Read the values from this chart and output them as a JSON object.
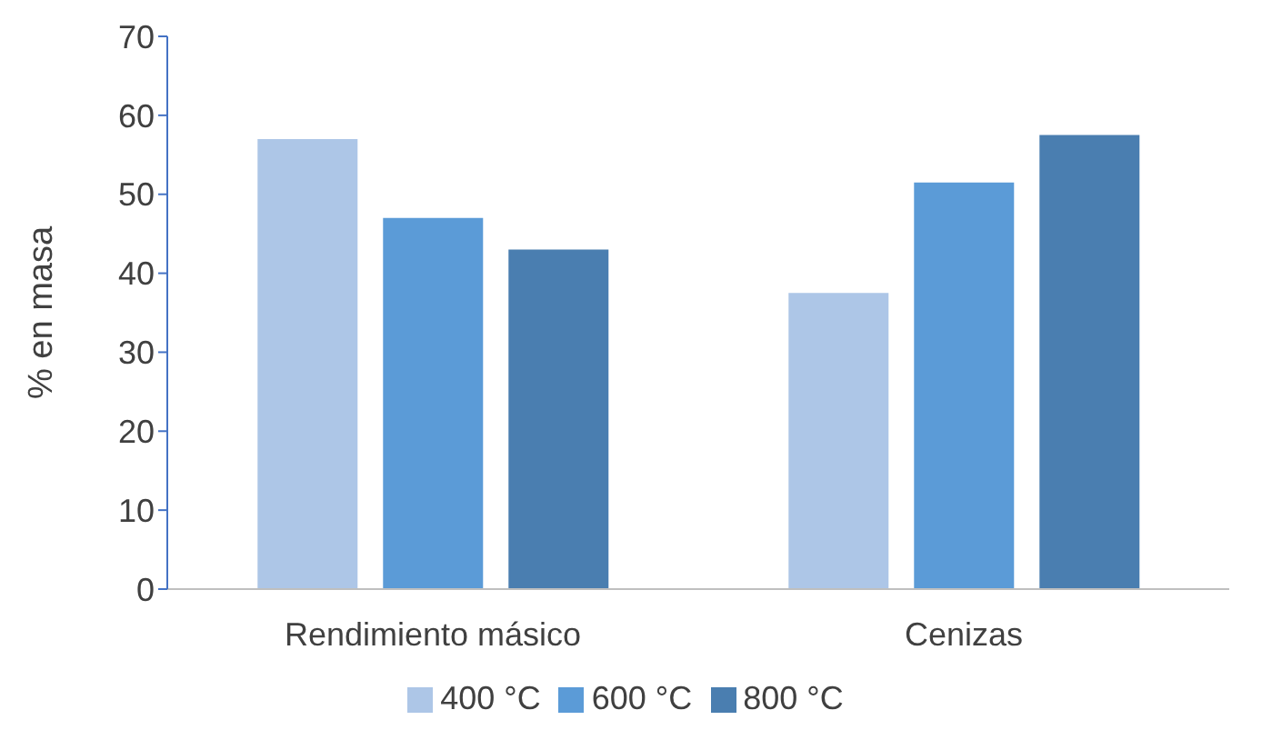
{
  "chart_data": {
    "type": "bar",
    "ylabel": "% en masa",
    "categories": [
      "Rendimiento másico",
      "Cenizas"
    ],
    "series": [
      {
        "name": "400 °C",
        "color": "#adc6e7",
        "values": [
          57,
          37.5
        ]
      },
      {
        "name": "600 °C",
        "color": "#5b9bd7",
        "values": [
          47,
          51.5
        ]
      },
      {
        "name": "800 °C",
        "color": "#4a7eb0",
        "values": [
          43,
          57.5
        ]
      }
    ],
    "ylim": [
      0,
      70
    ],
    "yticks": [
      0,
      10,
      20,
      30,
      40,
      50,
      60,
      70
    ],
    "grid": false,
    "legend": "bottom"
  }
}
